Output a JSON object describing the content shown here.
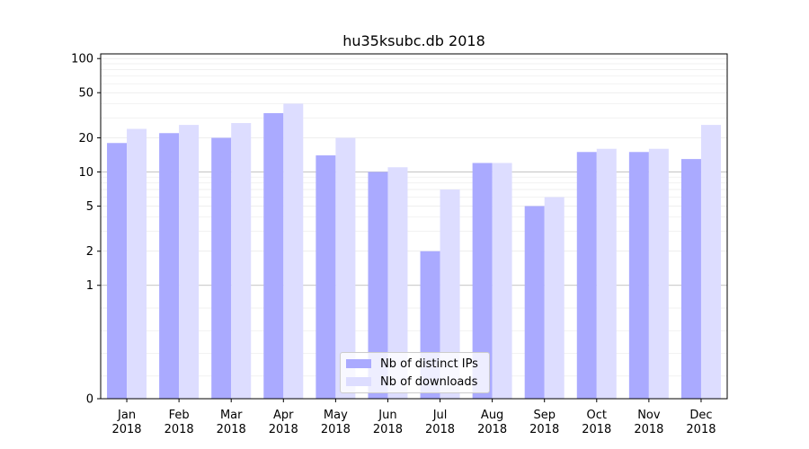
{
  "chart_data": {
    "type": "bar",
    "title": "hu35ksubc.db 2018",
    "xlabel": "",
    "ylabel": "",
    "y_scale": "symlog",
    "ylim": [
      0,
      110
    ],
    "y_ticks": [
      0,
      1,
      2,
      5,
      10,
      20,
      50,
      100
    ],
    "categories": [
      {
        "month": "Jan",
        "year": "2018"
      },
      {
        "month": "Feb",
        "year": "2018"
      },
      {
        "month": "Mar",
        "year": "2018"
      },
      {
        "month": "Apr",
        "year": "2018"
      },
      {
        "month": "May",
        "year": "2018"
      },
      {
        "month": "Jun",
        "year": "2018"
      },
      {
        "month": "Jul",
        "year": "2018"
      },
      {
        "month": "Aug",
        "year": "2018"
      },
      {
        "month": "Sep",
        "year": "2018"
      },
      {
        "month": "Oct",
        "year": "2018"
      },
      {
        "month": "Nov",
        "year": "2018"
      },
      {
        "month": "Dec",
        "year": "2018"
      }
    ],
    "series": [
      {
        "name": "Nb of distinct IPs",
        "color": "#aaaaff",
        "values": [
          18,
          22,
          20,
          33,
          14,
          10,
          2,
          12,
          5,
          15,
          15,
          13
        ]
      },
      {
        "name": "Nb of downloads",
        "color": "#ddddff",
        "values": [
          24,
          26,
          27,
          40,
          20,
          11,
          7,
          12,
          6,
          16,
          16,
          26
        ]
      }
    ],
    "grid": true,
    "legend_position": "bottom-center"
  }
}
